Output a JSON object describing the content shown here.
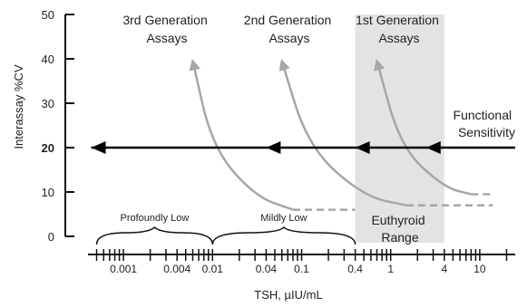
{
  "chart_data": {
    "type": "line",
    "title": "",
    "xlabel": "TSH, µIU/mL",
    "ylabel": "Interassay %CV",
    "x_scale": "log",
    "x_ticks": [
      "0.001",
      "0.004",
      "0.01",
      "0.04",
      "0.1",
      "0.4",
      "1",
      "4",
      "10"
    ],
    "x_tick_values": [
      0.001,
      0.004,
      0.01,
      0.04,
      0.1,
      0.4,
      1,
      4,
      10
    ],
    "xlim": [
      0.0004,
      25
    ],
    "ylim": [
      0,
      50
    ],
    "y_ticks": [
      "0",
      "10",
      "20",
      "30",
      "40",
      "50"
    ],
    "y_tick_values": [
      0,
      10,
      20,
      30,
      40,
      50
    ],
    "y_tick_emphasis": "20",
    "grid": false,
    "series": [
      {
        "name": "3rd Generation Assays",
        "points": [
          [
            0.006,
            39.5
          ],
          [
            0.01,
            20
          ],
          [
            0.03,
            9
          ],
          [
            0.08,
            6
          ]
        ],
        "dashed_tail": [
          [
            0.08,
            6
          ],
          [
            0.4,
            6
          ]
        ]
      },
      {
        "name": "2nd Generation Assays",
        "points": [
          [
            0.06,
            39.5
          ],
          [
            0.12,
            20
          ],
          [
            0.5,
            9
          ],
          [
            1.5,
            7
          ]
        ],
        "dashed_tail": [
          [
            1.5,
            7
          ],
          [
            14,
            7
          ]
        ]
      },
      {
        "name": "1st Generation Assays",
        "points": [
          [
            0.7,
            39.5
          ],
          [
            1.3,
            20
          ],
          [
            4,
            11
          ],
          [
            8,
            9.5
          ]
        ],
        "dashed_tail": [
          [
            8,
            9.5
          ],
          [
            14,
            9.5
          ]
        ]
      }
    ],
    "functional_sensitivity": {
      "label": "Functional Sensitivity",
      "label_lines": [
        "Functional",
        "Sensitivity"
      ],
      "y": 20,
      "arrow_positions": [
        0.0005,
        0.04,
        0.4,
        2.5
      ]
    },
    "euthyroid_range": {
      "label_lines": [
        "Euthyroid",
        "Range"
      ],
      "x_start": 0.4,
      "x_end": 4,
      "color": "#e3e3e3"
    },
    "braces": [
      {
        "label": "Profoundly Low",
        "x_start": 0.0005,
        "x_end": 0.01
      },
      {
        "label": "Mildly Low",
        "x_start": 0.01,
        "x_end": 0.4
      }
    ],
    "colors": {
      "curve": "#a6a6a6",
      "axis": "#111111",
      "band": "#e3e3e3"
    }
  }
}
